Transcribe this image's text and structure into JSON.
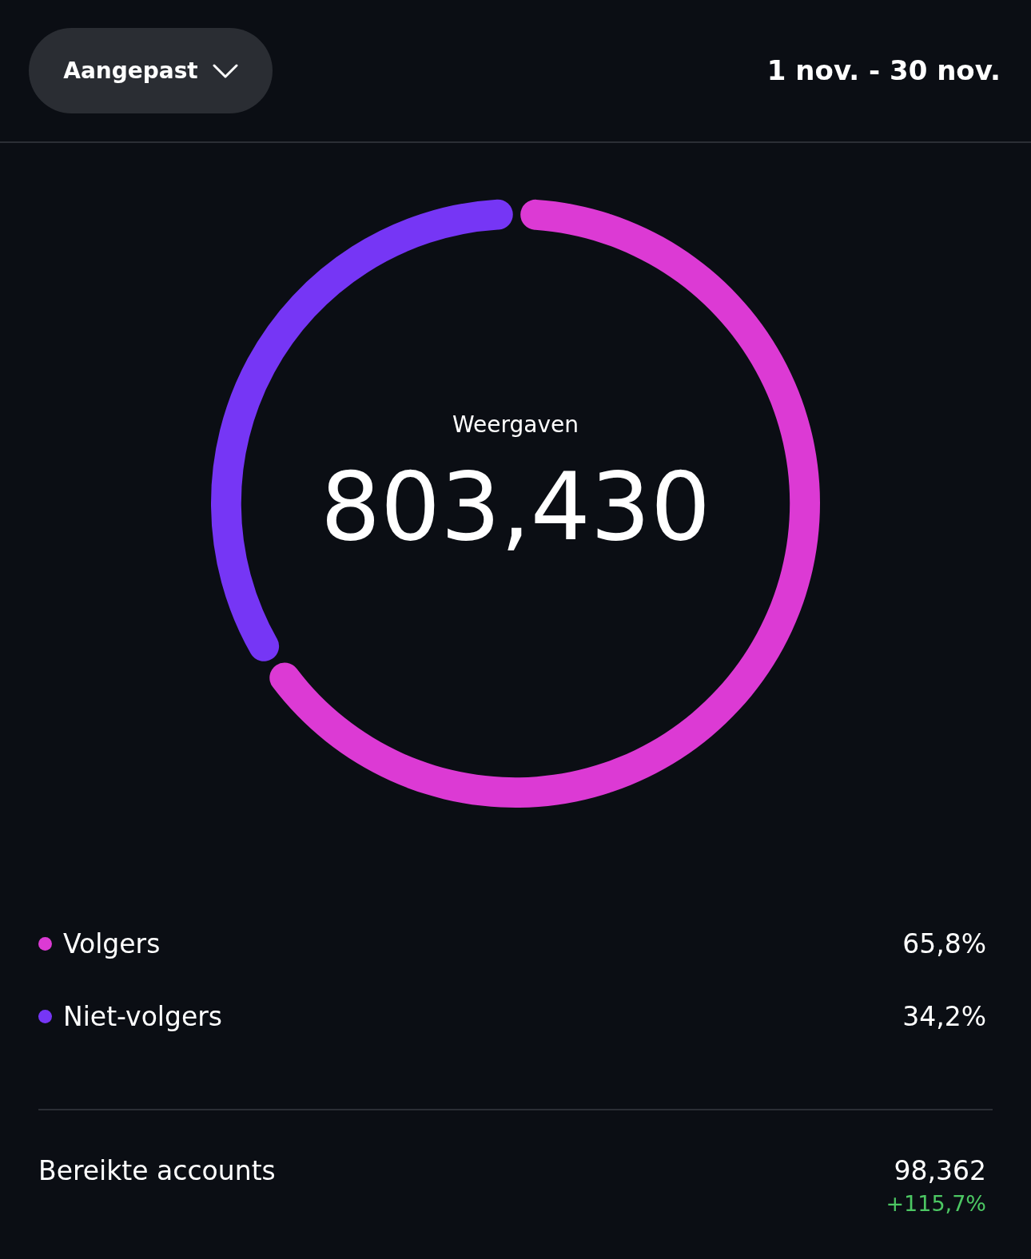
{
  "chart_data": {
    "type": "donut",
    "title": "Weergaven",
    "subtitle": "1 nov. - 30 nov.",
    "categories": [
      "Volgers",
      "Niet-volgers"
    ],
    "values": [
      65.8,
      34.2
    ],
    "value_labels": [
      "65,8%",
      "34,2%"
    ],
    "colors": [
      "#dc3ad4",
      "#7636f5"
    ],
    "legend": "bottom",
    "annotations": [
      "Aangepast",
      "803,430",
      "Bereikte accounts",
      "98,362",
      "+115,7%"
    ]
  }
}
